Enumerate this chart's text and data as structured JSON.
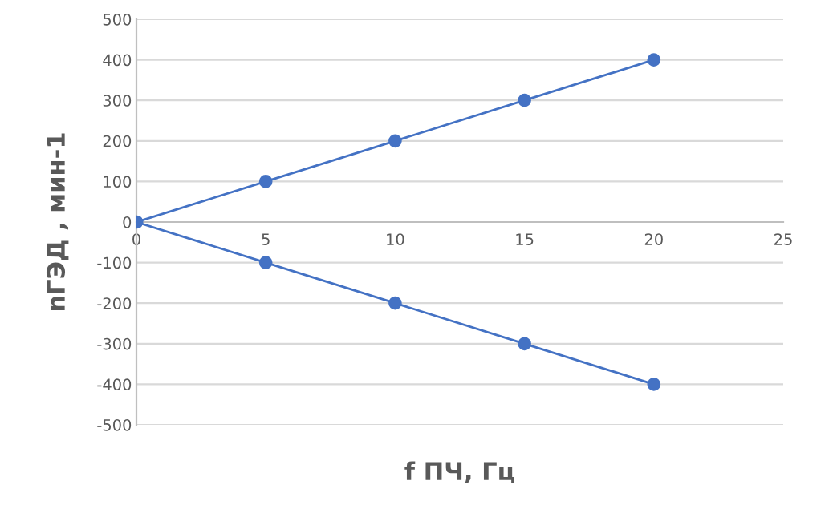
{
  "chart_data": {
    "type": "line",
    "xlabel": "f ПЧ, Гц",
    "ylabel": "nГЭД , мин-1",
    "series": [
      {
        "color": "#4472c4",
        "x": [
          0,
          5,
          10,
          15,
          20
        ],
        "values": [
          0,
          100,
          200,
          300,
          400
        ]
      },
      {
        "color": "#4472c4",
        "x": [
          0,
          5,
          10,
          15,
          20
        ],
        "values": [
          0,
          -100,
          -200,
          -300,
          -400
        ]
      }
    ],
    "xlim": [
      0,
      25
    ],
    "xticks": [
      0,
      5,
      10,
      15,
      20,
      25
    ],
    "ylim": [
      -500,
      500
    ],
    "yticks": [
      -500,
      -400,
      -300,
      -200,
      -100,
      0,
      100,
      200,
      300,
      400,
      500
    ],
    "grid": "y",
    "marker": "circle",
    "line_style": "solid",
    "legend": false
  }
}
